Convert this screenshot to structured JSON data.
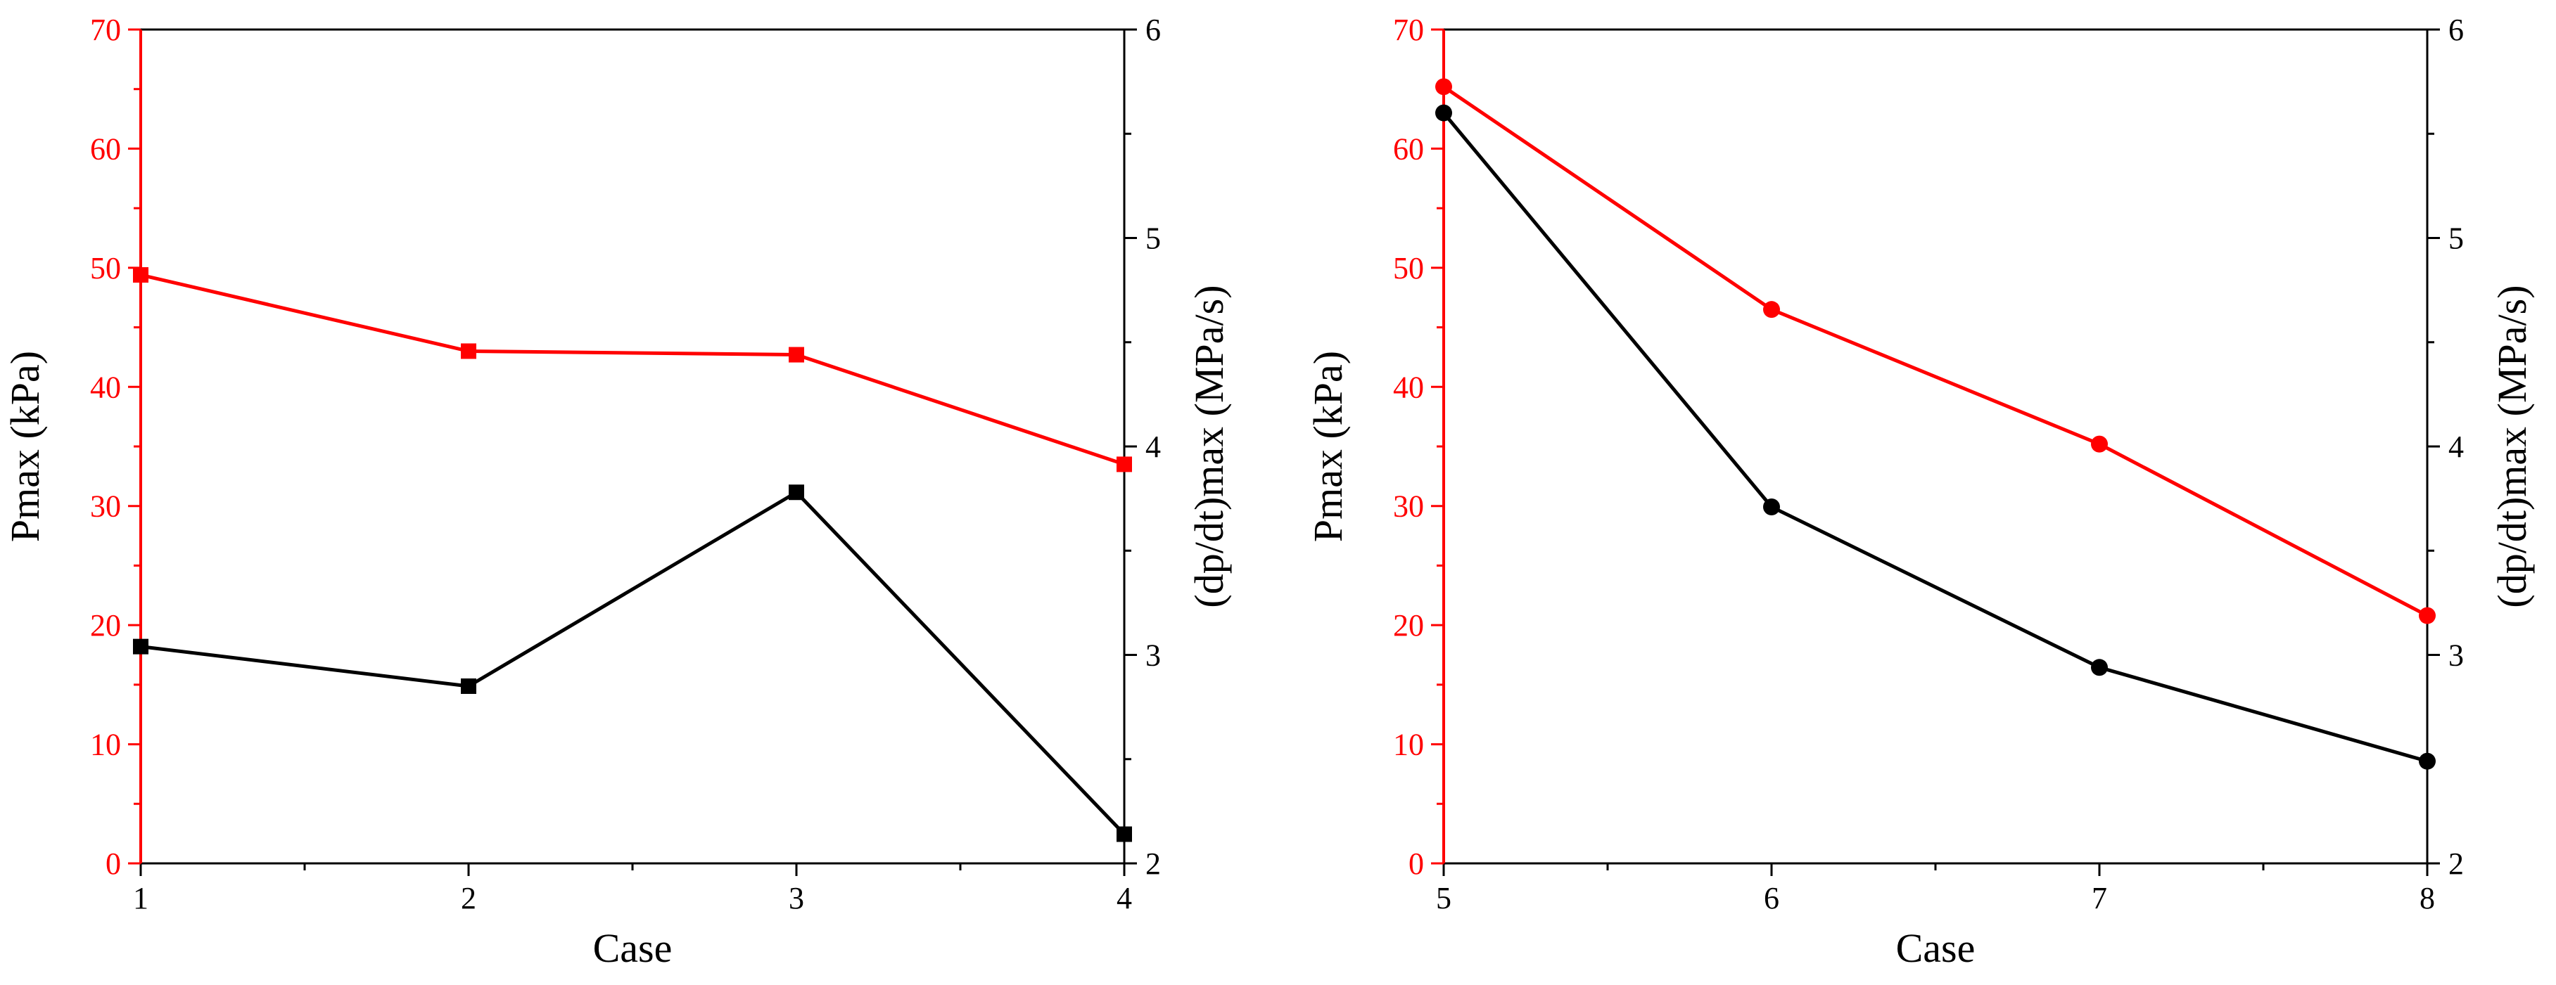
{
  "colors": {
    "pmax": "#ff0000",
    "dpdt": "#000000",
    "frame": "#000000"
  },
  "chart_data": [
    {
      "type": "line",
      "title": "",
      "xlabel": "Case",
      "ylabel": "Pmax (kPa)",
      "y2label": "(dp/dt)max (MPa/s)",
      "x": [
        1,
        2,
        3,
        4
      ],
      "xlim": [
        1,
        4
      ],
      "ylim": [
        0,
        70
      ],
      "y2lim": [
        2,
        6
      ],
      "xticks": [
        "1",
        "2",
        "3",
        "4"
      ],
      "yticks": [
        "0",
        "10",
        "20",
        "30",
        "40",
        "50",
        "60",
        "70"
      ],
      "y2ticks": [
        "2",
        "3",
        "4",
        "5",
        "6"
      ],
      "marker": "square",
      "grid": false,
      "series": [
        {
          "axis": "left",
          "color": "#ff0000",
          "values": [
            49.4,
            43.0,
            42.7,
            33.5
          ]
        },
        {
          "axis": "right",
          "color": "#000000",
          "values": [
            3.04,
            2.85,
            3.78,
            2.14
          ]
        }
      ]
    },
    {
      "type": "line",
      "title": "",
      "xlabel": "Case",
      "ylabel": "Pmax (kPa)",
      "y2label": "(dp/dt)max (MPa/s)",
      "x": [
        5,
        6,
        7,
        8
      ],
      "xlim": [
        5,
        8
      ],
      "ylim": [
        0,
        70
      ],
      "y2lim": [
        2,
        6
      ],
      "xticks": [
        "5",
        "6",
        "7",
        "8"
      ],
      "yticks": [
        "0",
        "10",
        "20",
        "30",
        "40",
        "50",
        "60",
        "70"
      ],
      "y2ticks": [
        "2",
        "3",
        "4",
        "5",
        "6"
      ],
      "marker": "circle",
      "grid": false,
      "series": [
        {
          "axis": "left",
          "color": "#ff0000",
          "values": [
            65.2,
            46.5,
            35.2,
            20.8
          ]
        },
        {
          "axis": "right",
          "color": "#000000",
          "values": [
            5.6,
            3.71,
            2.94,
            2.49
          ]
        }
      ]
    }
  ]
}
